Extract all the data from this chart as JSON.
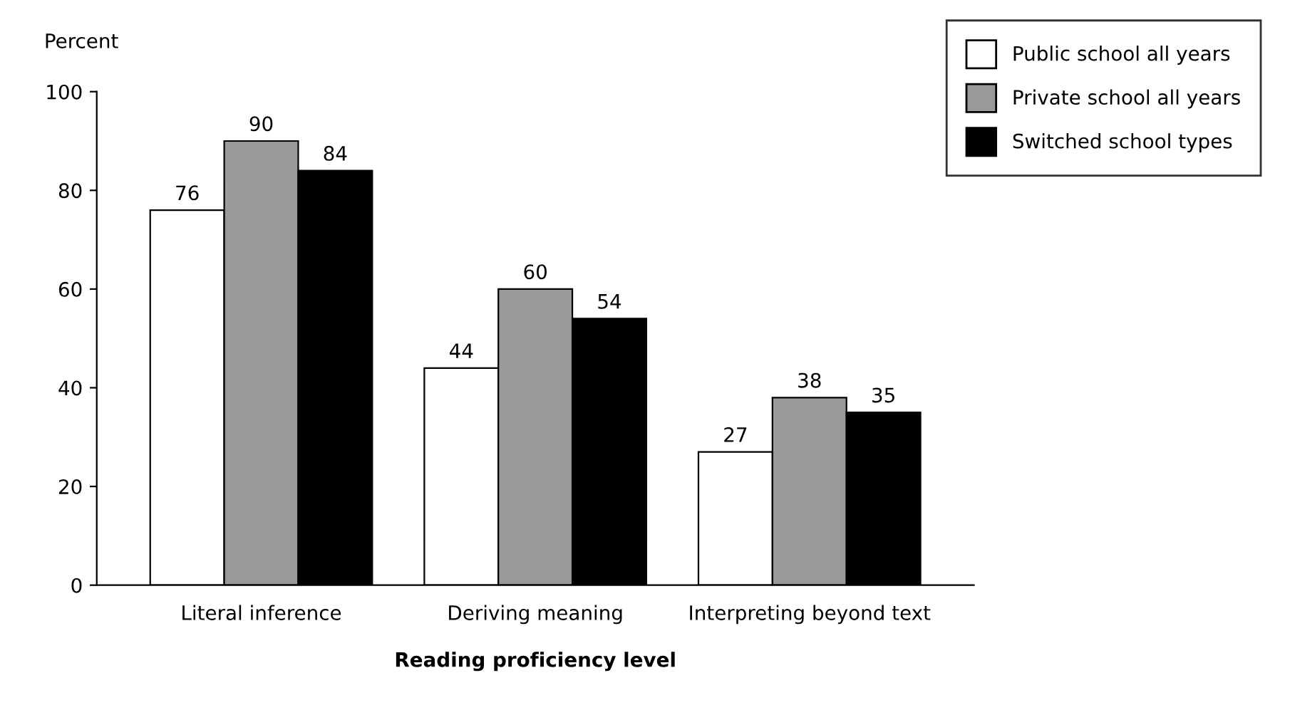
{
  "chart_data": {
    "type": "bar",
    "xlabel": "Reading proficiency level",
    "ylabel": "Percent",
    "categories": [
      "Literal inference",
      "Deriving meaning",
      "Interpreting beyond text"
    ],
    "series": [
      {
        "name": "Public school all years",
        "color": "#ffffff",
        "values": [
          76,
          44,
          27
        ]
      },
      {
        "name": "Private school all years",
        "color": "#9a9a9a",
        "values": [
          90,
          60,
          38
        ]
      },
      {
        "name": "Switched school types",
        "color": "#000000",
        "values": [
          84,
          54,
          35
        ]
      }
    ],
    "ylim": [
      0,
      100
    ],
    "yticks": [
      0,
      20,
      40,
      60,
      80,
      100
    ],
    "grid": false,
    "legend": "top right",
    "data_labels": true
  }
}
